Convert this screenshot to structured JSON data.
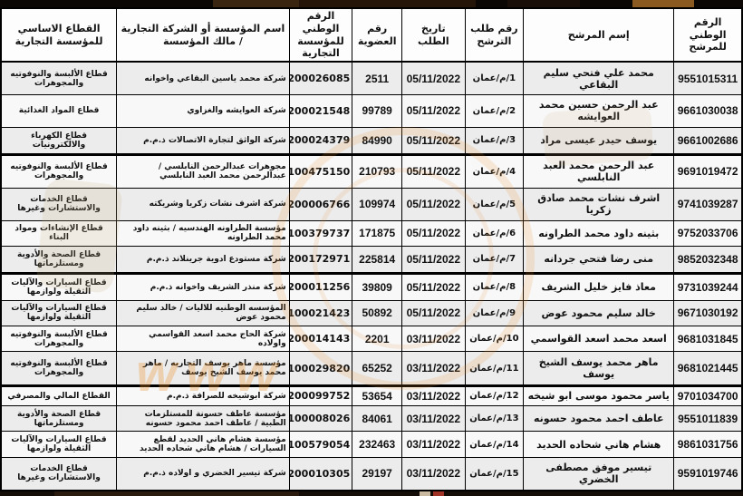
{
  "table": {
    "columns": [
      {
        "key": "national_id",
        "label": "الرقم الوطني\nللمرشح",
        "width": "9.2%",
        "cls": "num"
      },
      {
        "key": "candidate",
        "label": "إسم المرشح",
        "width": "20.3%",
        "cls": "name"
      },
      {
        "key": "request_no",
        "label": "رقم طلب\nالترشح",
        "width": "7.9%",
        "cls": "req"
      },
      {
        "key": "request_date",
        "label": "تاريخ الطلب",
        "width": "8.5%",
        "cls": "num"
      },
      {
        "key": "membership_no",
        "label": "رقم العضوية",
        "width": "6.7%",
        "cls": "num"
      },
      {
        "key": "est_national_id",
        "label": "الرقم الوطني\nللمؤسسة التجارية",
        "width": "8.5%",
        "cls": "mid"
      },
      {
        "key": "company",
        "label": "اسم المؤسسة أو الشركة التجارية / مالك المؤسسة",
        "width": "23.3%",
        "cls": "company"
      },
      {
        "key": "sector",
        "label": "القطاع الاساسي للمؤسسة التجارية",
        "width": "15.6%",
        "cls": "sector"
      }
    ],
    "group_breaks": [
      3,
      7,
      11
    ],
    "rows": [
      {
        "national_id": "9551015311",
        "candidate": "محمد علي فتحي سليم البقاعي",
        "request_no": "1/م/عمان",
        "request_date": "05/11/2022",
        "membership_no": "2511",
        "est_national_id": "200026085",
        "company": "شركة محمد ياسين البقاعي واخوانه",
        "sector": "قطاع الألبسة والنوفوتيه والمجوهرات"
      },
      {
        "national_id": "9661030038",
        "candidate": "عبد الرحمن حسين محمد العوايشه",
        "request_no": "2/م/عمان",
        "request_date": "05/11/2022",
        "membership_no": "99789",
        "est_national_id": "200021548",
        "company": "شركة العوايشه والغزاوي",
        "sector": "قطاع المواد الغذائية"
      },
      {
        "national_id": "9661002686",
        "candidate": "يوسف حيدر عيسى مراد",
        "request_no": "3/م/عمان",
        "request_date": "05/11/2022",
        "membership_no": "84990",
        "est_national_id": "200024379",
        "company": "شركة الواثق لتجارة الاتصالات ذ.م.م",
        "sector": "قطاع الكهرباء والالكترونيات"
      },
      {
        "national_id": "9691019472",
        "candidate": "عبد الرحمن محمد العبد النابلسي",
        "request_no": "4/م/عمان",
        "request_date": "05/11/2022",
        "membership_no": "210793",
        "est_national_id": "100475150",
        "company": "مجوهرات عبدالرحمن النابلسي / عبدالرحمن محمد العبد النابلسي",
        "sector": "قطاع الألبسة والنوفوتيه والمجوهرات"
      },
      {
        "national_id": "9741039287",
        "candidate": "اشرف نشات محمد صادق زكريا",
        "request_no": "5/م/عمان",
        "request_date": "05/11/2022",
        "membership_no": "109974",
        "est_national_id": "200006766",
        "company": "شركة اشرف نشات زكريا وشريكته",
        "sector": "قطاع الخدمات والاستشارات وغيرها"
      },
      {
        "national_id": "9752033706",
        "candidate": "بثينه داود محمد الطراونه",
        "request_no": "6/م/عمان",
        "request_date": "05/11/2022",
        "membership_no": "171875",
        "est_national_id": "100379737",
        "company": "مؤسسة الطراونه الهندسيه / بثينه داود محمد الطراونه",
        "sector": "قطاع الإنشاءات ومواد البناء"
      },
      {
        "national_id": "9852032348",
        "candidate": "منى رضا فتحي جردانه",
        "request_no": "7/م/عمان",
        "request_date": "05/11/2022",
        "membership_no": "225814",
        "est_national_id": "200172971",
        "company": "شركة مستودع ادوية جرينلاند ذ.م.م",
        "sector": "قطاع الصحة والأدوية ومستلزماتها"
      },
      {
        "national_id": "9731039244",
        "candidate": "معاذ فايز خليل الشريف",
        "request_no": "8/م/عمان",
        "request_date": "05/11/2022",
        "membership_no": "39809",
        "est_national_id": "200011256",
        "company": "شركة منذر الشريف واخوانه ذ.م.م",
        "sector": "قطاع السيارات والآليات الثقيلة ولوازمها"
      },
      {
        "national_id": "9671030192",
        "candidate": "خالد سليم محمود عوض",
        "request_no": "9/م/عمان",
        "request_date": "05/11/2022",
        "membership_no": "50892",
        "est_national_id": "100021423",
        "company": "المؤسسه الوطنيه للاليات / خالد سليم محمود عوض",
        "sector": "قطاع السيارات والآليات الثقيلة ولوازمها"
      },
      {
        "national_id": "9681031845",
        "candidate": "اسعد محمد اسعد القواسمي",
        "request_no": "10/م/عمان",
        "request_date": "03/11/2022",
        "membership_no": "2201",
        "est_national_id": "200014143",
        "company": "شركة الحاج محمد اسعد القواسمي واولاده",
        "sector": "قطاع الألبسة والنوفوتيه والمجوهرات"
      },
      {
        "national_id": "9681021445",
        "candidate": "ماهر محمد يوسف الشيخ يوسف",
        "request_no": "11/م/عمان",
        "request_date": "03/11/2022",
        "membership_no": "65252",
        "est_national_id": "100029820",
        "company": "مؤسسة ماهر يوسف التجاريه / ماهر محمد يوسف الشيخ يوسف",
        "sector": "قطاع الألبسة والنوفوتيه والمجوهرات"
      },
      {
        "national_id": "9701034700",
        "candidate": "ياسر محمود موسى ابو شيخه",
        "request_no": "12/م/عمان",
        "request_date": "03/11/2022",
        "membership_no": "53654",
        "est_national_id": "200099752",
        "company": "شركة ابوشيخه للصرافة ذ.م.م",
        "sector": "القطاع المالي والمصرفي"
      },
      {
        "national_id": "9551011839",
        "candidate": "عاطف احمد محمود حسونه",
        "request_no": "13/م/عمان",
        "request_date": "03/11/2022",
        "membership_no": "84061",
        "est_national_id": "100008026",
        "company": "مؤسسة عاطف حسونة للمستلزمات الطبية / عاطف احمد محمود حسونه",
        "sector": "قطاع الصحة والأدوية ومستلزماتها"
      },
      {
        "national_id": "9861031756",
        "candidate": "هشام هاني شحاده الحديد",
        "request_no": "14/م/عمان",
        "request_date": "03/11/2022",
        "membership_no": "232463",
        "est_national_id": "100579054",
        "company": "مؤسسة هشام هاني الحديد لقطع السيارات / هشام هاني شحاده الحديد",
        "sector": "قطاع السيارات والآليات الثقيلة ولوازمها"
      },
      {
        "national_id": "9591019746",
        "candidate": "تيسير موفق مصطفى الخضري",
        "request_no": "15/م/عمان",
        "request_date": "03/11/2022",
        "membership_no": "29197",
        "est_national_id": "200010305",
        "company": "شركة تيسير الخضري و اولاده ذ.م.م",
        "sector": "قطاع الخدمات والاستشارات وغيرها"
      }
    ]
  },
  "watermark": {
    "www_text": "www",
    "accent_orange": "#E58A2B"
  },
  "colors": {
    "border": "#000000",
    "row_odd": "#ececec",
    "row_even": "#f8f8f8",
    "strip_dark": "#0b0705"
  }
}
